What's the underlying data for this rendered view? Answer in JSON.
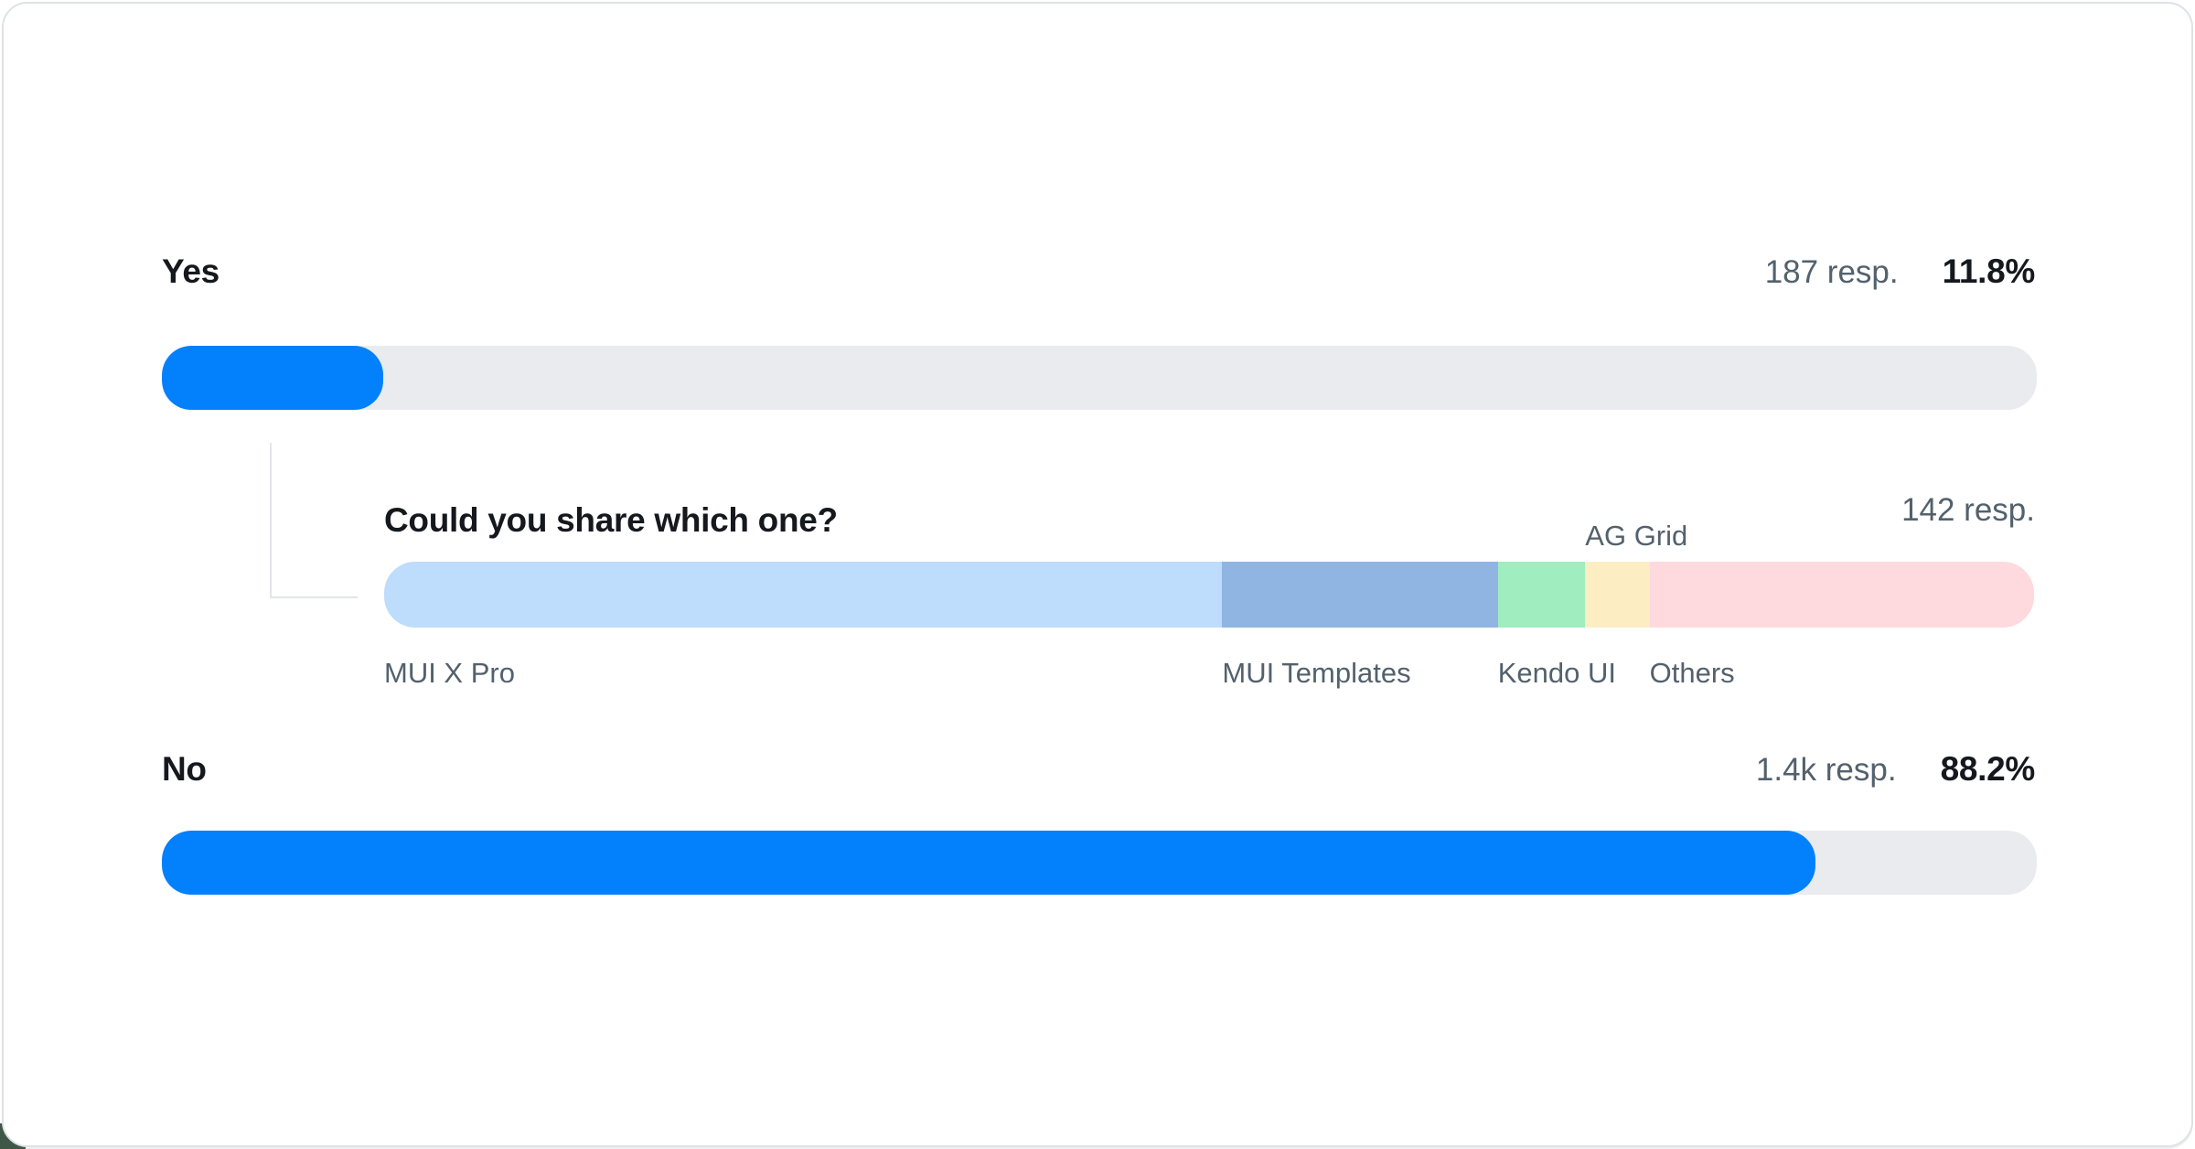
{
  "card_title": "",
  "colors": {
    "primary_blue": "#0380fb",
    "bar_track_gray": "#e9ebef",
    "text_dark": "#15191e",
    "text_gray": "#53616d",
    "connector_gray": "#e2e5e9",
    "card_border": "#dee2e7",
    "backdrop_corner": "#3e5747"
  },
  "chart_data": {
    "type": "bar",
    "orientation": "horizontal",
    "title": "",
    "categories": [
      "Yes",
      "No"
    ],
    "values": [
      11.8,
      88.2
    ],
    "value_labels": [
      "11.8%",
      "88.2%"
    ],
    "response_counts": [
      "187 resp.",
      "1.4k resp."
    ],
    "bar_colors": [
      "#0380fb",
      "#0380fb"
    ],
    "track_color": "#e9ebef",
    "followup": {
      "type": "bar",
      "subtype": "stacked",
      "parent_category": "Yes",
      "title": "Could you share which one?",
      "response_count": "142 resp.",
      "categories": [
        "MUI X Pro",
        "MUI Templates",
        "Kendo UI",
        "AG Grid",
        "Others"
      ],
      "values": [
        50.8,
        16.7,
        5.3,
        3.9,
        23.3
      ],
      "colors": [
        "#bedcfb",
        "#90b5e3",
        "#a0edbf",
        "#fceec2",
        "#fed9dd"
      ],
      "label_positions": [
        "below",
        "below",
        "below",
        "above",
        "below"
      ]
    }
  }
}
